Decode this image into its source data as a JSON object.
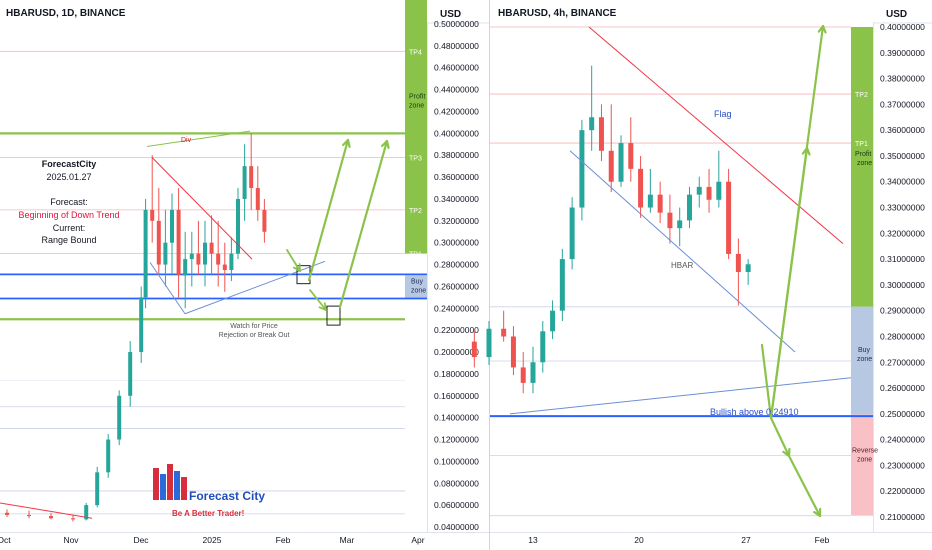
{
  "chart_data": [
    {
      "type": "candlestick",
      "title": "HBARUSD, 1D, BINANCE",
      "currency": "USD",
      "x_ticks": [
        "Oct",
        "Nov",
        "Dec",
        "2025",
        "Feb",
        "Mar",
        "Apr"
      ],
      "y_ticks": [
        "0.50000000",
        "0.48000000",
        "0.46000000",
        "0.44000000",
        "0.42000000",
        "0.40000000",
        "0.38000000",
        "0.36000000",
        "0.34000000",
        "0.32000000",
        "0.30000000",
        "0.28000000",
        "0.26000000",
        "0.24000000",
        "0.22000000",
        "0.20000000",
        "0.18000000",
        "0.16000000",
        "0.14000000",
        "0.12000000",
        "0.10000000",
        "0.08000000",
        "0.06000000",
        "0.04000000"
      ],
      "ylim": [
        0.04,
        0.5
      ],
      "zone_labels": {
        "tp4": "TP4",
        "profit": "Profit zone",
        "tp3": "TP3",
        "tp2": "TP2",
        "tp1": "TP1",
        "buy": "Buy zone"
      },
      "zones": {
        "profit": [
          0.29,
          0.5
        ],
        "buy": [
          0.249,
          0.27
        ]
      },
      "levels": {
        "green": [
          0.4,
          0.23
        ],
        "blue": [
          0.271,
          0.249
        ],
        "tp4": 0.475,
        "tp3": 0.378,
        "tp2": 0.33,
        "tp1": 0.29
      },
      "annotations": {
        "brand": "ForecastCity",
        "date": "2025.01.27",
        "forecast_label": "Forecast:",
        "forecast_value": "Beginning of Down Trend",
        "current_label": "Current:",
        "current_value": "Range Bound",
        "div": "Div",
        "watch_line1": "Watch for Price",
        "watch_line2": "Rejection or Break Out"
      },
      "logo": {
        "name": "Forecast City",
        "slogan": "Be A Better Trader!"
      },
      "series": [
        {
          "x": [
            "2024-10-01",
            "2024-10-11",
            "2024-10-21",
            "2024-10-31",
            "2024-11-06",
            "2024-11-11",
            "2024-11-16",
            "2024-11-21",
            "2024-11-26",
            "2024-12-01",
            "2024-12-03",
            "2024-12-06",
            "2024-12-09",
            "2024-12-12",
            "2024-12-15",
            "2024-12-18",
            "2024-12-21",
            "2024-12-24",
            "2024-12-27",
            "2024-12-30",
            "2025-01-02",
            "2025-01-05",
            "2025-01-08",
            "2025-01-11",
            "2025-01-14",
            "2025-01-17",
            "2025-01-20",
            "2025-01-23",
            "2025-01-26"
          ],
          "open": [
            0.053,
            0.051,
            0.05,
            0.048,
            0.047,
            0.06,
            0.09,
            0.12,
            0.16,
            0.2,
            0.25,
            0.33,
            0.32,
            0.28,
            0.3,
            0.33,
            0.27,
            0.285,
            0.29,
            0.28,
            0.3,
            0.29,
            0.28,
            0.275,
            0.29,
            0.34,
            0.37,
            0.35,
            0.33
          ],
          "high": [
            0.056,
            0.055,
            0.053,
            0.051,
            0.062,
            0.095,
            0.125,
            0.165,
            0.21,
            0.26,
            0.34,
            0.38,
            0.35,
            0.33,
            0.345,
            0.35,
            0.31,
            0.31,
            0.32,
            0.32,
            0.325,
            0.32,
            0.3,
            0.305,
            0.35,
            0.39,
            0.4,
            0.37,
            0.34
          ],
          "low": [
            0.049,
            0.048,
            0.047,
            0.045,
            0.046,
            0.058,
            0.085,
            0.115,
            0.15,
            0.19,
            0.24,
            0.3,
            0.27,
            0.26,
            0.27,
            0.25,
            0.24,
            0.26,
            0.27,
            0.26,
            0.27,
            0.26,
            0.255,
            0.265,
            0.285,
            0.32,
            0.33,
            0.32,
            0.3
          ],
          "close": [
            0.051,
            0.05,
            0.048,
            0.047,
            0.06,
            0.09,
            0.12,
            0.16,
            0.2,
            0.25,
            0.33,
            0.32,
            0.28,
            0.3,
            0.33,
            0.27,
            0.285,
            0.29,
            0.28,
            0.3,
            0.29,
            0.28,
            0.275,
            0.29,
            0.34,
            0.37,
            0.35,
            0.33,
            0.31
          ]
        }
      ]
    },
    {
      "type": "candlestick",
      "title": "HBARUSD, 4h, BINANCE",
      "currency": "USD",
      "x_ticks": [
        "13",
        "20",
        "27",
        "Feb"
      ],
      "y_ticks": [
        "0.40000000",
        "0.39000000",
        "0.38000000",
        "0.37000000",
        "0.36000000",
        "0.35000000",
        "0.34000000",
        "0.33000000",
        "0.32000000",
        "0.31000000",
        "0.30000000",
        "0.29000000",
        "0.28000000",
        "0.27000000",
        "0.26000000",
        "0.25000000",
        "0.24000000",
        "0.23000000",
        "0.22000000",
        "0.21000000"
      ],
      "ylim": [
        0.207,
        0.404
      ],
      "zone_labels": {
        "tp2": "TP2",
        "tp1": "TP1",
        "profit": "Profit zone",
        "buy": "Buy zone",
        "reverse": "Reverse zone"
      },
      "zones": {
        "profit": [
          0.2915,
          0.4
        ],
        "buy": [
          0.2497,
          0.2915
        ],
        "reverse": [
          0.2105,
          0.2497
        ]
      },
      "levels": {
        "tp2": 0.374,
        "tp1": 0.355,
        "bullish": 0.2491,
        "extra": [
          0.2915,
          0.2705,
          0.2338,
          0.2105
        ]
      },
      "annotations": {
        "flag": "Flag",
        "hbar": "HBAR",
        "bullish": "Bullish above 0.24910"
      },
      "series": [
        {
          "x": [
            "2025-01-09T00",
            "2025-01-10T00",
            "2025-01-11T00",
            "2025-01-11T16",
            "2025-01-12T08",
            "2025-01-13T00",
            "2025-01-13T16",
            "2025-01-14T08",
            "2025-01-15T00",
            "2025-01-15T16",
            "2025-01-16T08",
            "2025-01-17T00",
            "2025-01-17T16",
            "2025-01-18T08",
            "2025-01-19T00",
            "2025-01-19T16",
            "2025-01-20T08",
            "2025-01-21T00",
            "2025-01-21T16",
            "2025-01-22T08",
            "2025-01-23T00",
            "2025-01-23T16",
            "2025-01-24T08",
            "2025-01-25T00",
            "2025-01-25T16",
            "2025-01-26T08",
            "2025-01-27T00",
            "2025-01-27T16"
          ],
          "open": [
            0.278,
            0.272,
            0.283,
            0.28,
            0.268,
            0.262,
            0.27,
            0.282,
            0.29,
            0.31,
            0.33,
            0.36,
            0.365,
            0.352,
            0.34,
            0.355,
            0.345,
            0.33,
            0.335,
            0.328,
            0.322,
            0.325,
            0.335,
            0.338,
            0.333,
            0.34,
            0.312,
            0.305
          ],
          "high": [
            0.282,
            0.286,
            0.29,
            0.284,
            0.274,
            0.276,
            0.286,
            0.294,
            0.314,
            0.334,
            0.364,
            0.385,
            0.37,
            0.37,
            0.358,
            0.365,
            0.35,
            0.345,
            0.34,
            0.335,
            0.33,
            0.338,
            0.342,
            0.345,
            0.352,
            0.345,
            0.318,
            0.31
          ],
          "low": [
            0.268,
            0.269,
            0.278,
            0.265,
            0.258,
            0.258,
            0.266,
            0.279,
            0.286,
            0.306,
            0.325,
            0.352,
            0.348,
            0.336,
            0.338,
            0.34,
            0.326,
            0.328,
            0.324,
            0.316,
            0.315,
            0.322,
            0.33,
            0.328,
            0.33,
            0.31,
            0.292,
            0.3
          ],
          "close": [
            0.272,
            0.283,
            0.28,
            0.268,
            0.262,
            0.27,
            0.282,
            0.29,
            0.31,
            0.33,
            0.36,
            0.365,
            0.352,
            0.34,
            0.355,
            0.345,
            0.33,
            0.335,
            0.328,
            0.322,
            0.325,
            0.335,
            0.338,
            0.333,
            0.34,
            0.312,
            0.305,
            0.308
          ]
        }
      ]
    }
  ]
}
